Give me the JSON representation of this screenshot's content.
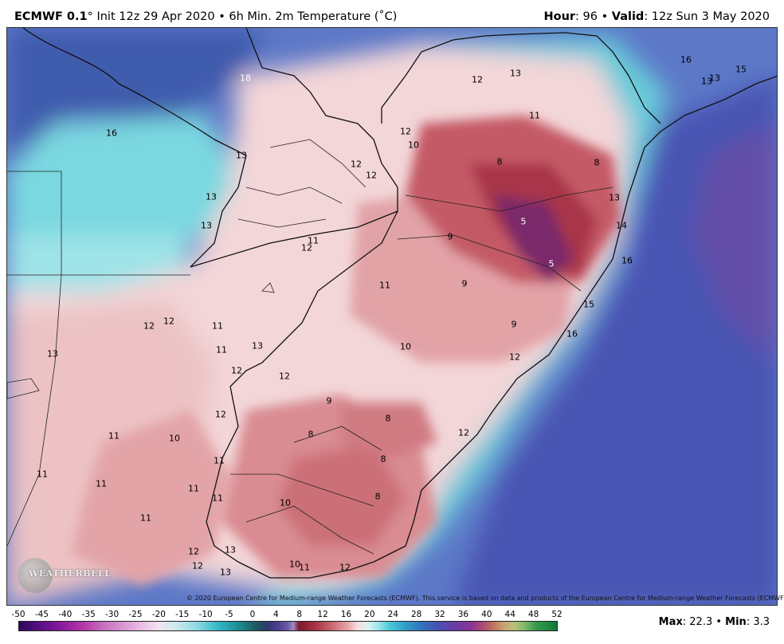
{
  "header": {
    "model": "ECMWF 0.1",
    "deg": "°",
    "init_text": " Init 12z 29 Apr 2020 • 6h Min. 2m Temperature (",
    "unit_deg": "˚C)",
    "hour_label": "Hour",
    "hour_value": ": 96 • ",
    "valid_label": "Valid",
    "valid_value": ": 12z Sun 3 May 2020"
  },
  "map": {
    "contour_labels": [
      {
        "text": "16",
        "white": false
      },
      {
        "text": "18",
        "white": true
      },
      {
        "text": "12",
        "white": false
      },
      {
        "text": "13",
        "white": false
      },
      {
        "text": "16",
        "white": false
      },
      {
        "text": "13",
        "white": false
      },
      {
        "text": "13",
        "white": false
      },
      {
        "text": "15",
        "white": false
      },
      {
        "text": "11",
        "white": false
      },
      {
        "text": "12",
        "white": false
      },
      {
        "text": "10",
        "white": false
      },
      {
        "text": "8",
        "white": false
      },
      {
        "text": "8",
        "white": false
      },
      {
        "text": "12",
        "white": false
      },
      {
        "text": "13",
        "white": false
      },
      {
        "text": "12",
        "white": false
      },
      {
        "text": "13",
        "white": false
      },
      {
        "text": "13",
        "white": false
      },
      {
        "text": "13",
        "white": false
      },
      {
        "text": "5",
        "white": true
      },
      {
        "text": "9",
        "white": false
      },
      {
        "text": "11",
        "white": false
      },
      {
        "text": "12",
        "white": false
      },
      {
        "text": "14",
        "white": false
      },
      {
        "text": "5",
        "white": true
      },
      {
        "text": "16",
        "white": false
      },
      {
        "text": "11",
        "white": false
      },
      {
        "text": "9",
        "white": false
      },
      {
        "text": "15",
        "white": false
      },
      {
        "text": "12",
        "white": false
      },
      {
        "text": "12",
        "white": false
      },
      {
        "text": "11",
        "white": false
      },
      {
        "text": "9",
        "white": false
      },
      {
        "text": "16",
        "white": false
      },
      {
        "text": "13",
        "white": false
      },
      {
        "text": "11",
        "white": false
      },
      {
        "text": "13",
        "white": false
      },
      {
        "text": "10",
        "white": false
      },
      {
        "text": "12",
        "white": false
      },
      {
        "text": "12",
        "white": false
      },
      {
        "text": "12",
        "white": false
      },
      {
        "text": "9",
        "white": false
      },
      {
        "text": "8",
        "white": false
      },
      {
        "text": "12",
        "white": false
      },
      {
        "text": "11",
        "white": false
      },
      {
        "text": "10",
        "white": false
      },
      {
        "text": "8",
        "white": false
      },
      {
        "text": "11",
        "white": false
      },
      {
        "text": "12",
        "white": false
      },
      {
        "text": "8",
        "white": false
      },
      {
        "text": "11",
        "white": false
      },
      {
        "text": "11",
        "white": false
      },
      {
        "text": "11",
        "white": false
      },
      {
        "text": "10",
        "white": false
      },
      {
        "text": "8",
        "white": false
      },
      {
        "text": "11",
        "white": false
      },
      {
        "text": "11",
        "white": false
      },
      {
        "text": "12",
        "white": false
      },
      {
        "text": "13",
        "white": false
      },
      {
        "text": "12",
        "white": false
      },
      {
        "text": "13",
        "white": false
      },
      {
        "text": "10",
        "white": false
      },
      {
        "text": "11",
        "white": false
      },
      {
        "text": "12",
        "white": false
      }
    ],
    "copyright": "© 2020 European Centre for Medium-range Weather Forecasts (ECMWF). This service is based on data and products of the European Centre for Medium-range Weather Forecasts (ECMWF).",
    "logo_text": "WEATHERBELL"
  },
  "colorbar": {
    "ticks": [
      "-50",
      "-45",
      "-40",
      "-35",
      "-30",
      "-25",
      "-20",
      "-15",
      "-10",
      "-5",
      "0",
      "4",
      "8",
      "12",
      "16",
      "20",
      "24",
      "28",
      "32",
      "36",
      "40",
      "44",
      "48",
      "52"
    ]
  },
  "stats": {
    "max_label": "Max",
    "max_value": ": 22.3 • ",
    "min_label": "Min",
    "min_value": ": 3.3"
  }
}
